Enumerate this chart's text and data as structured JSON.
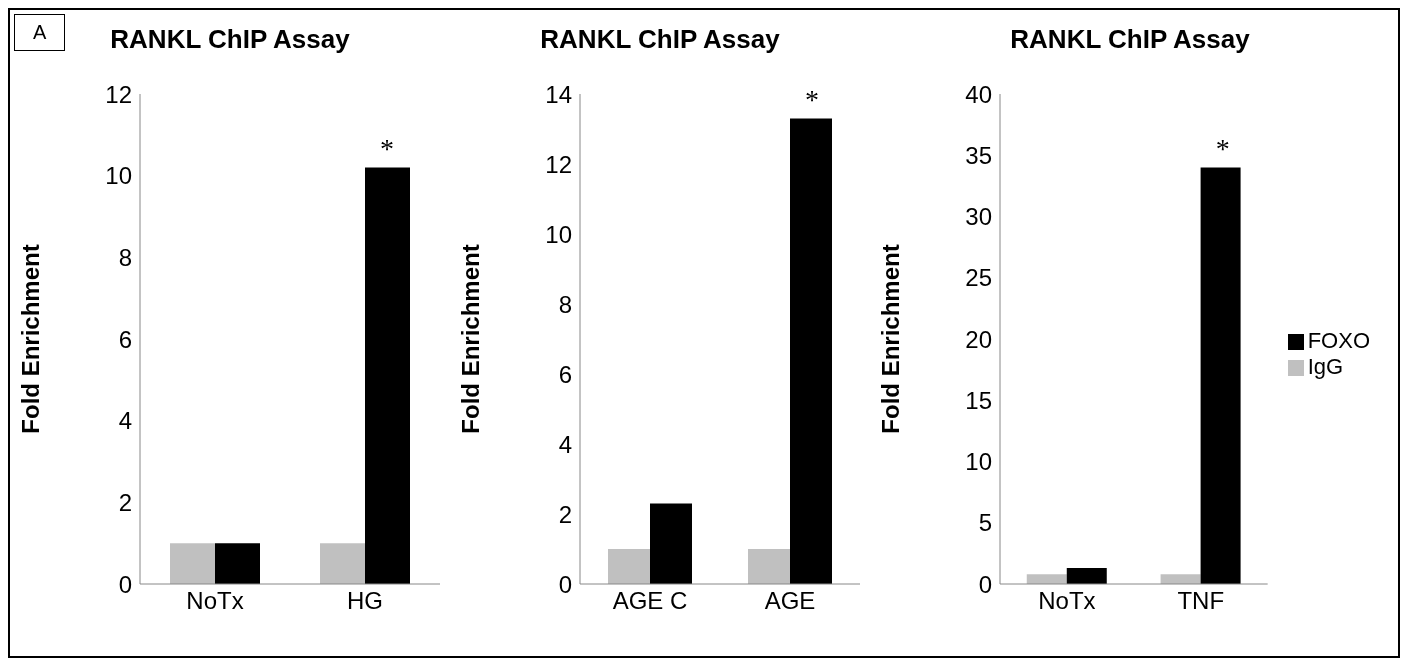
{
  "chart_data": [
    {
      "type": "bar",
      "title": "RANKL ChIP Assay",
      "ylabel": "Fold Enrichment",
      "categories": [
        "NoTx",
        "HG"
      ],
      "series": [
        {
          "color": "#c0c0c0",
          "values": [
            1,
            1
          ]
        },
        {
          "color": "#000000",
          "values": [
            1,
            10.2
          ]
        }
      ],
      "ylim": [
        0,
        12
      ],
      "yticks": [
        0,
        2,
        4,
        6,
        8,
        10,
        12
      ],
      "grid": false,
      "legend": false,
      "annotations": [
        "A",
        {
          "text": "*",
          "x": "HG",
          "y": 10.2
        }
      ]
    },
    {
      "type": "bar",
      "title": "RANKL ChIP Assay",
      "ylabel": "Fold Enrichment",
      "categories": [
        "AGE C",
        "AGE"
      ],
      "series": [
        {
          "color": "#c0c0c0",
          "values": [
            1,
            1
          ]
        },
        {
          "color": "#000000",
          "values": [
            2.3,
            13.3
          ]
        }
      ],
      "ylim": [
        0,
        14
      ],
      "yticks": [
        0,
        2,
        4,
        6,
        8,
        10,
        12,
        14
      ],
      "grid": false,
      "legend": false,
      "annotations": [
        {
          "text": "*",
          "x": "AGE",
          "y": 13.3
        }
      ]
    },
    {
      "type": "bar",
      "title": "RANKL ChIP Assay",
      "ylabel": "Fold Enrichment",
      "categories": [
        "NoTx",
        "TNF"
      ],
      "series": [
        {
          "name": "IgG",
          "color": "#c0c0c0",
          "values": [
            0.8,
            0.8
          ]
        },
        {
          "name": "FOXO",
          "color": "#000000",
          "values": [
            1.3,
            34
          ]
        }
      ],
      "ylim": [
        0,
        40
      ],
      "yticks": [
        0,
        5,
        10,
        15,
        20,
        25,
        30,
        35,
        40
      ],
      "grid": false,
      "legend": "right",
      "annotations": [
        {
          "text": "*",
          "x": "TNF",
          "y": 34
        }
      ]
    }
  ]
}
